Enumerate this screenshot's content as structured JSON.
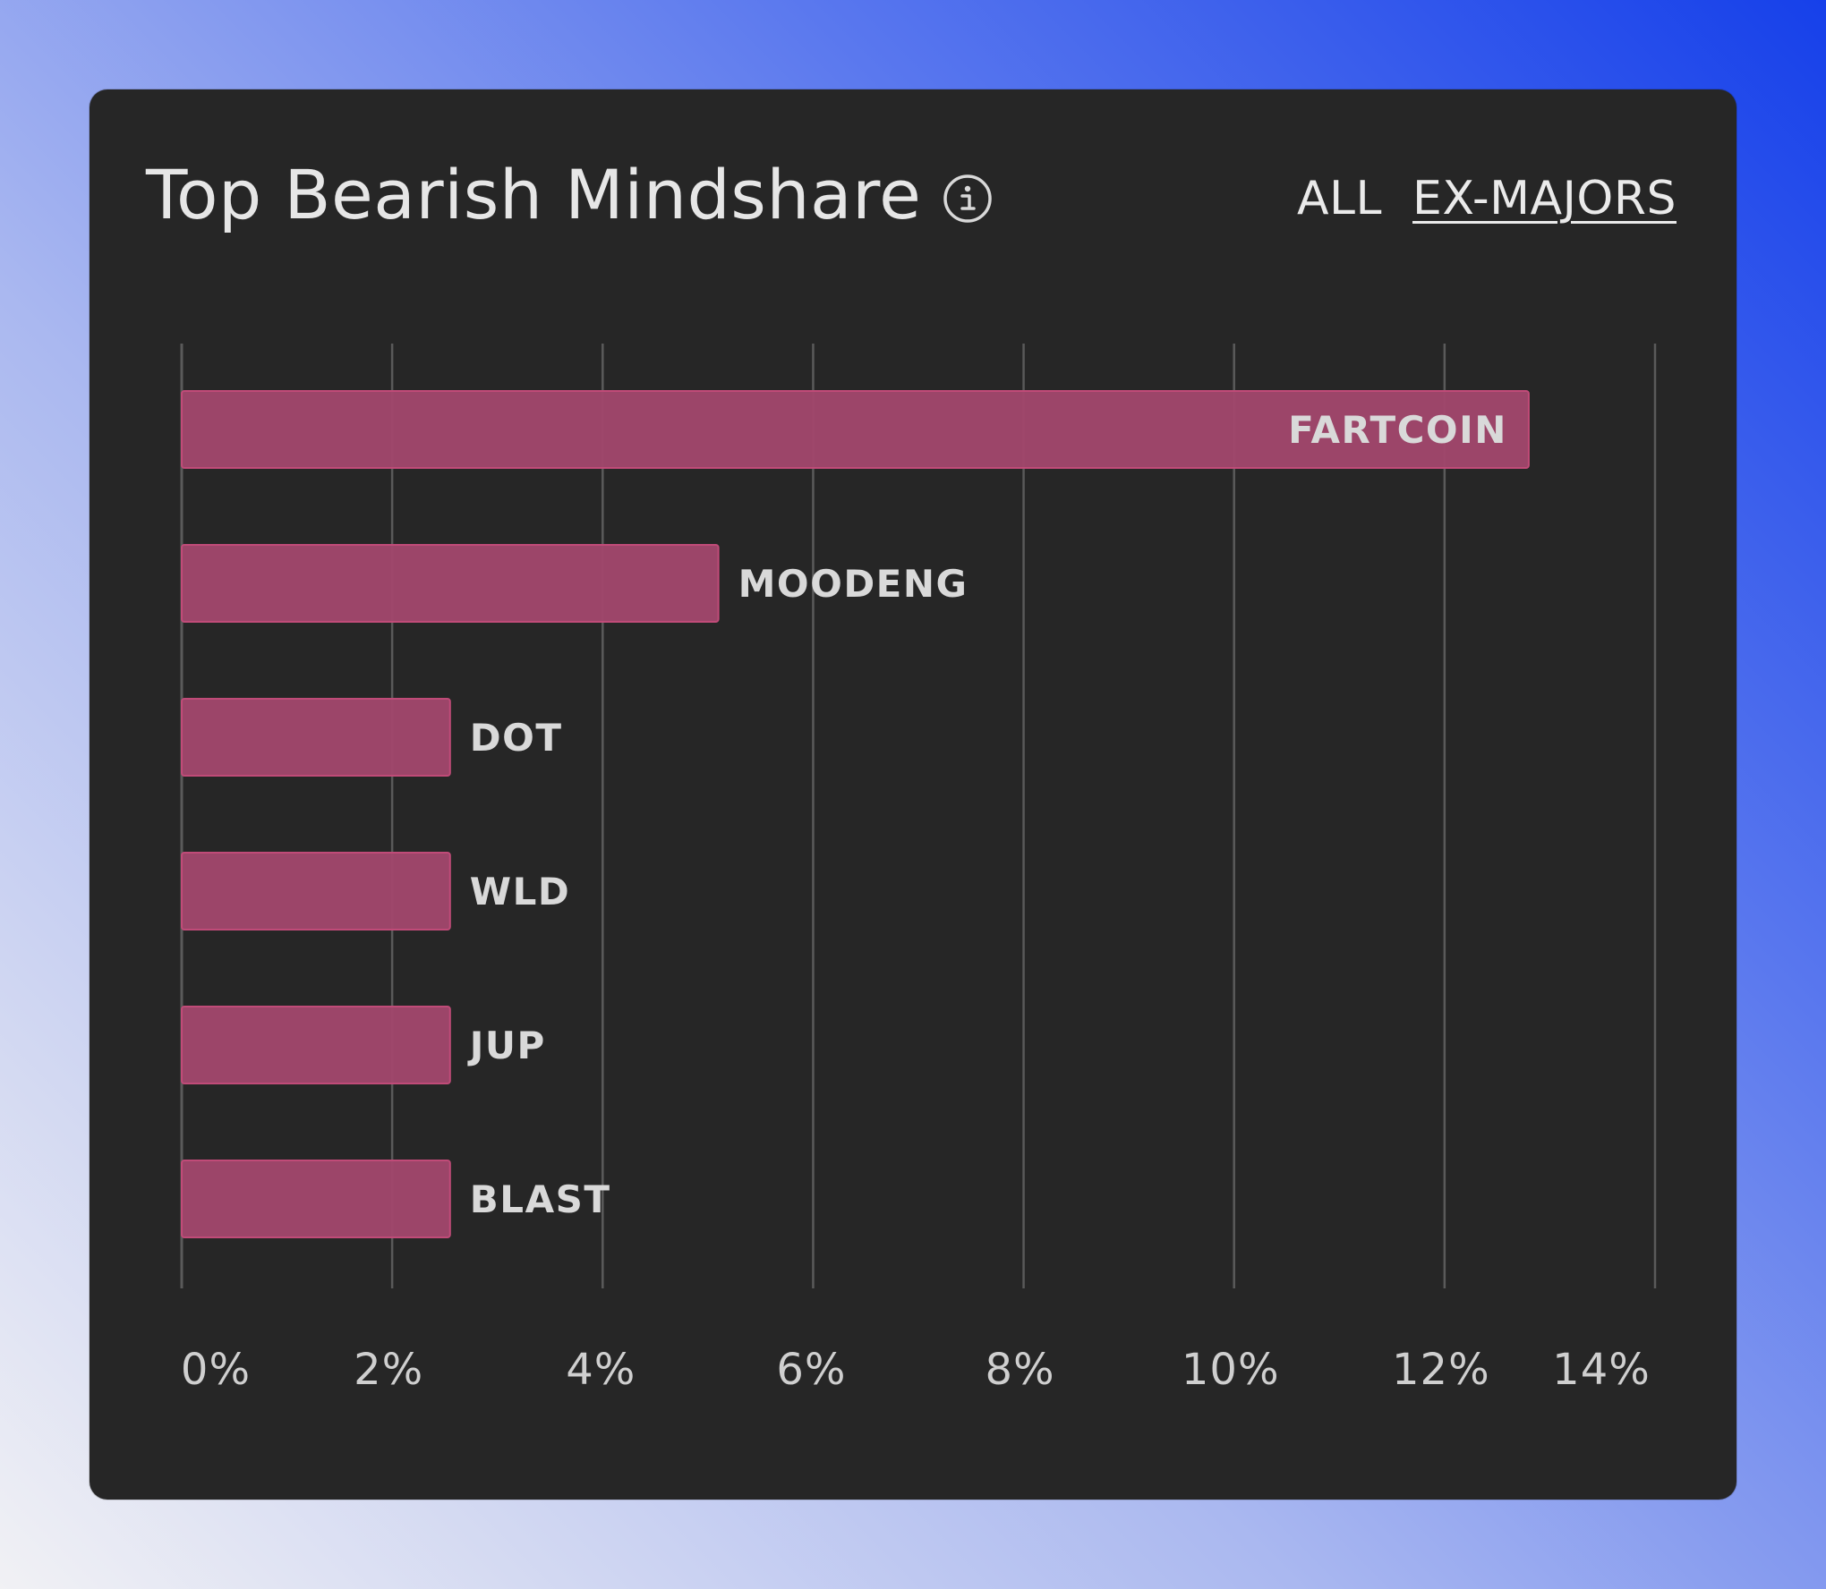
{
  "header": {
    "title": "Top Bearish Mindshare",
    "info_icon": "info-icon",
    "filters": [
      {
        "label": "ALL",
        "active": false
      },
      {
        "label": "EX-MAJORS",
        "active": true
      }
    ]
  },
  "colors": {
    "card_background": "#262626",
    "bar_fill": "#a2476d",
    "bar_stroke": "#c04b78",
    "gridline": "#5a5a5a",
    "label_text": "#d9d9d9"
  },
  "chart_data": {
    "type": "bar",
    "orientation": "horizontal",
    "title": "Top Bearish Mindshare",
    "categories": [
      "FARTCOIN",
      "MOODENG",
      "DOT",
      "WLD",
      "JUP",
      "BLAST"
    ],
    "values": [
      12.8,
      5.1,
      2.55,
      2.55,
      2.55,
      2.55
    ],
    "unit": "%",
    "xlim": [
      0,
      14
    ],
    "xticks": [
      "0%",
      "2%",
      "4%",
      "6%",
      "8%",
      "10%",
      "12%",
      "14%"
    ],
    "xtick_values": [
      0,
      2,
      4,
      6,
      8,
      10,
      12,
      14
    ],
    "grid": true,
    "label_position": "bar-end"
  }
}
